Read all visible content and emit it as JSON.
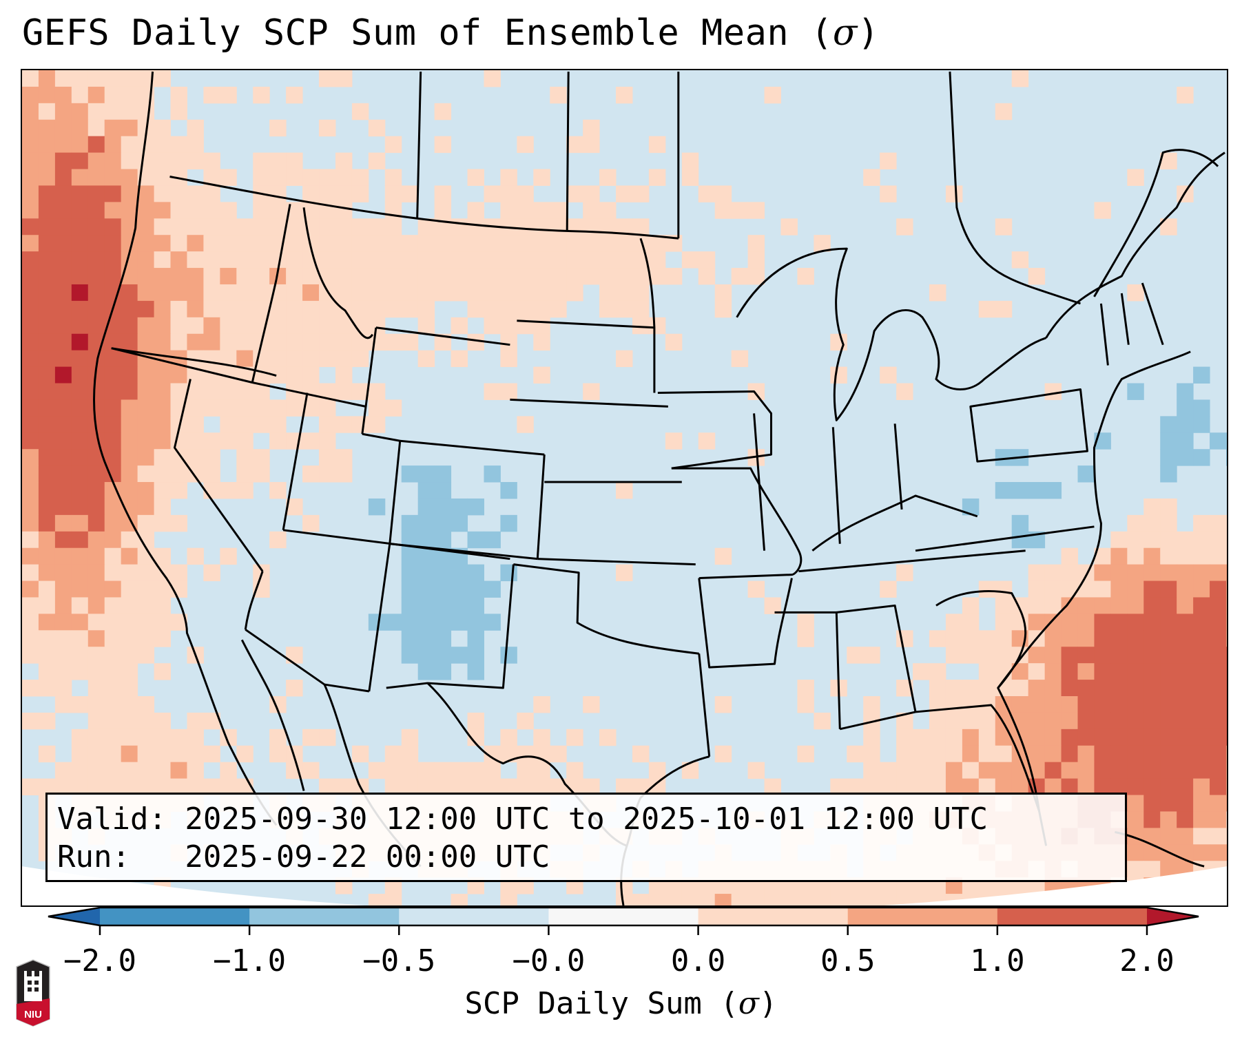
{
  "title": {
    "text": "GEFS Daily SCP Sum of Ensemble Mean (",
    "sigma": "σ",
    "close": ")"
  },
  "info_box": {
    "valid_line": "Valid: 2025-09-30 12:00 UTC to 2025-10-01 12:00 UTC",
    "run_line": "Run:   2025-09-22 00:00 UTC"
  },
  "colorbar": {
    "label_text": "SCP Daily Sum (",
    "label_sigma": "σ",
    "label_close": ")",
    "ticks": [
      "−2.0",
      "−1.0",
      "−0.5",
      "−0.0",
      "0.0",
      "0.5",
      "1.0",
      "2.0"
    ],
    "extend": "both",
    "colors": {
      "under": "#2166ac",
      "bins": [
        "#4393c3",
        "#92c5de",
        "#d1e5f0",
        "#f7f7f7",
        "#fddbc7",
        "#f4a582",
        "#d6604d"
      ],
      "over": "#b2182b"
    }
  },
  "map": {
    "region": "Continental United States",
    "background_class": "#d1e5f0",
    "features": [
      "coastlines",
      "state borders",
      "country borders"
    ]
  },
  "logo": {
    "text": "NIU",
    "colors": {
      "shield": "#231f20",
      "band": "#c8102e"
    }
  },
  "chart_data": {
    "type": "heatmap",
    "title": "GEFS Daily SCP Sum of Ensemble Mean (σ)",
    "colorbar_label": "SCP Daily Sum (σ)",
    "levels": [
      -2.0,
      -1.0,
      -0.5,
      -0.0,
      0.0,
      0.5,
      1.0,
      2.0
    ],
    "tick_labels": [
      "−2.0",
      "−1.0",
      "−0.5",
      "−0.0",
      "0.0",
      "0.5",
      "1.0",
      "2.0"
    ],
    "valid": "2025-09-30 12:00 UTC to 2025-10-01 12:00 UTC",
    "run": "2025-09-22 00:00 UTC",
    "regions": [
      {
        "name": "Pacific Northwest offshore",
        "class": "1.0 to 2.0"
      },
      {
        "name": "Western Atlantic / Bahamas offshore",
        "class": "0.5 to 1.0"
      },
      {
        "name": "Northern Plains / Montana",
        "class": "0.0 to 0.5"
      },
      {
        "name": "New Mexico / Colorado",
        "class": "-1.0 to -0.5"
      },
      {
        "name": "Virginia / Mid-Atlantic offshore",
        "class": "-1.0 to -0.5"
      },
      {
        "name": "Florida / Gulf of Mexico south",
        "class": "0.0 to 0.5"
      },
      {
        "name": "Most of CONUS",
        "class": "-0.5 to -0.0"
      }
    ]
  }
}
